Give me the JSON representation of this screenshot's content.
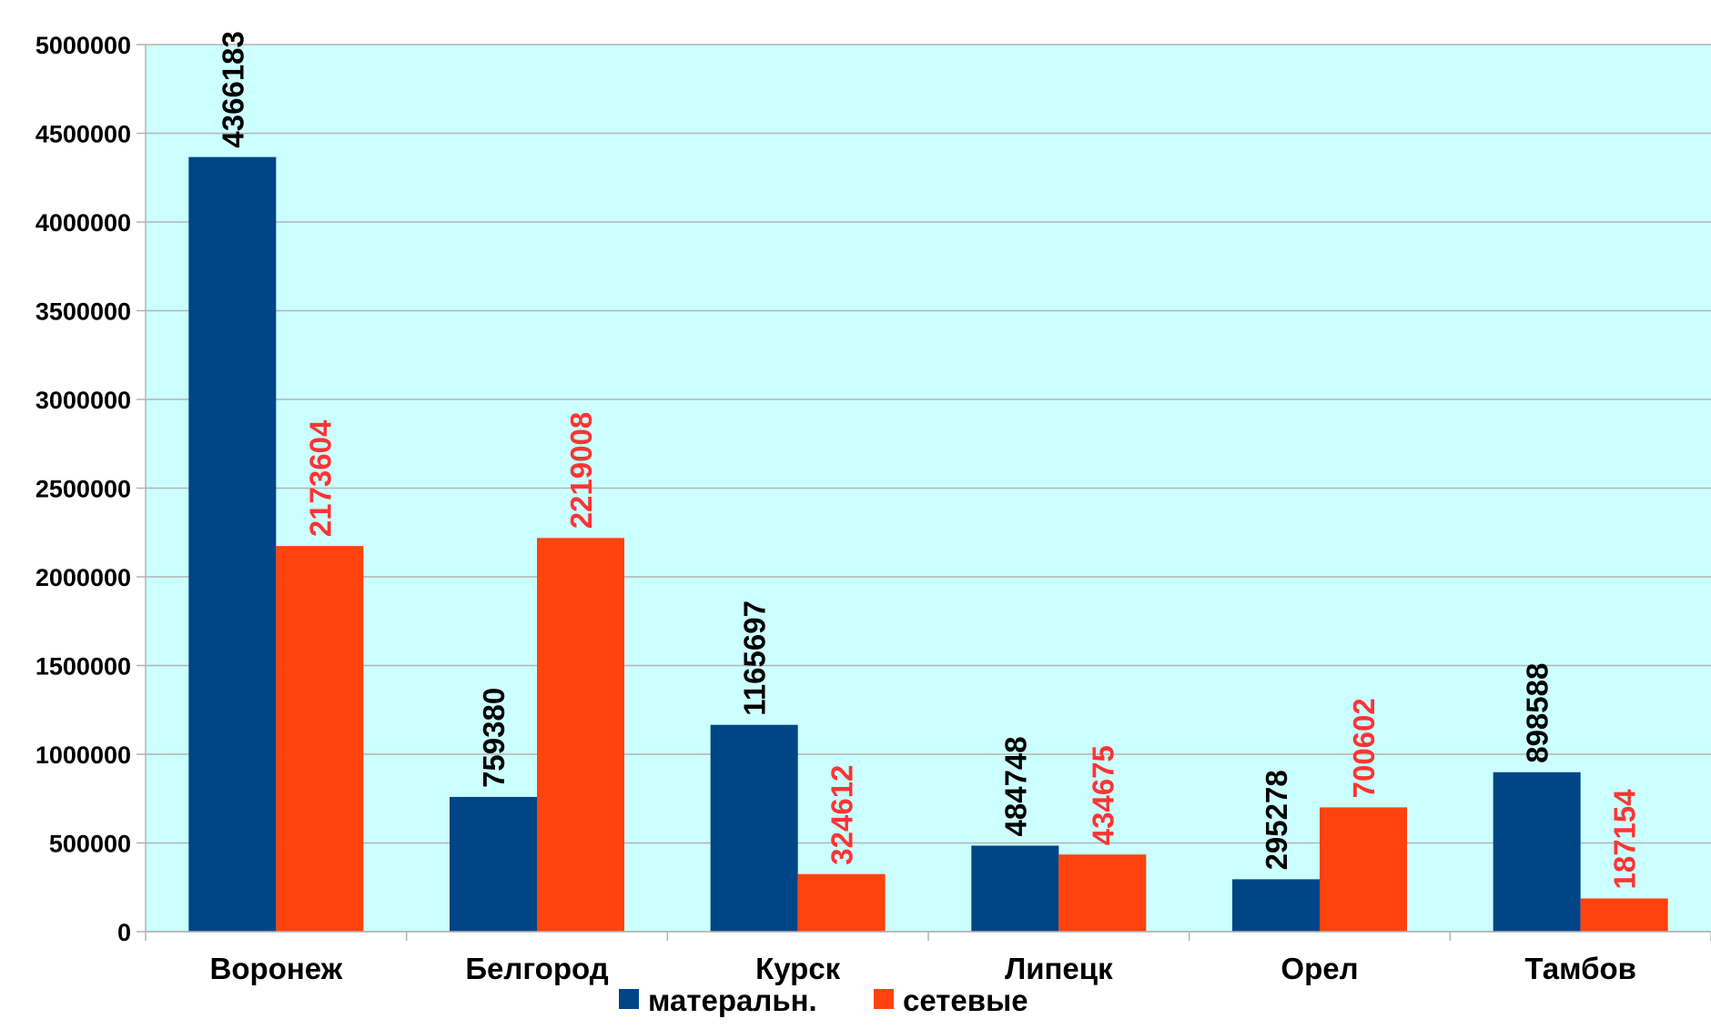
{
  "chart_data": {
    "type": "bar",
    "categories": [
      "Воронеж",
      "Белгород",
      "Курск",
      "Липецк",
      "Орел",
      "Тамбов"
    ],
    "series": [
      {
        "name": "матеральн.",
        "values": [
          4366183,
          759380,
          1165697,
          484748,
          295278,
          898588
        ],
        "color": "#004586",
        "label_color": "#000000"
      },
      {
        "name": "сетевые",
        "values": [
          2173604,
          2219008,
          324612,
          434675,
          700602,
          187154
        ],
        "color": "#ff420e",
        "label_color": "#ff3333"
      }
    ],
    "ylim": [
      0,
      5000000
    ],
    "yticks": [
      "0",
      "500000",
      "1000000",
      "1500000",
      "2000000",
      "2500000",
      "3000000",
      "3500000",
      "4000000",
      "4500000",
      "5000000"
    ],
    "title": "",
    "xlabel": "",
    "ylabel": "",
    "grid": true,
    "plot_background": "#ccffff",
    "gridline_color": "#b3b3b3",
    "legend_position": "bottom",
    "data_labels": "vertical"
  }
}
